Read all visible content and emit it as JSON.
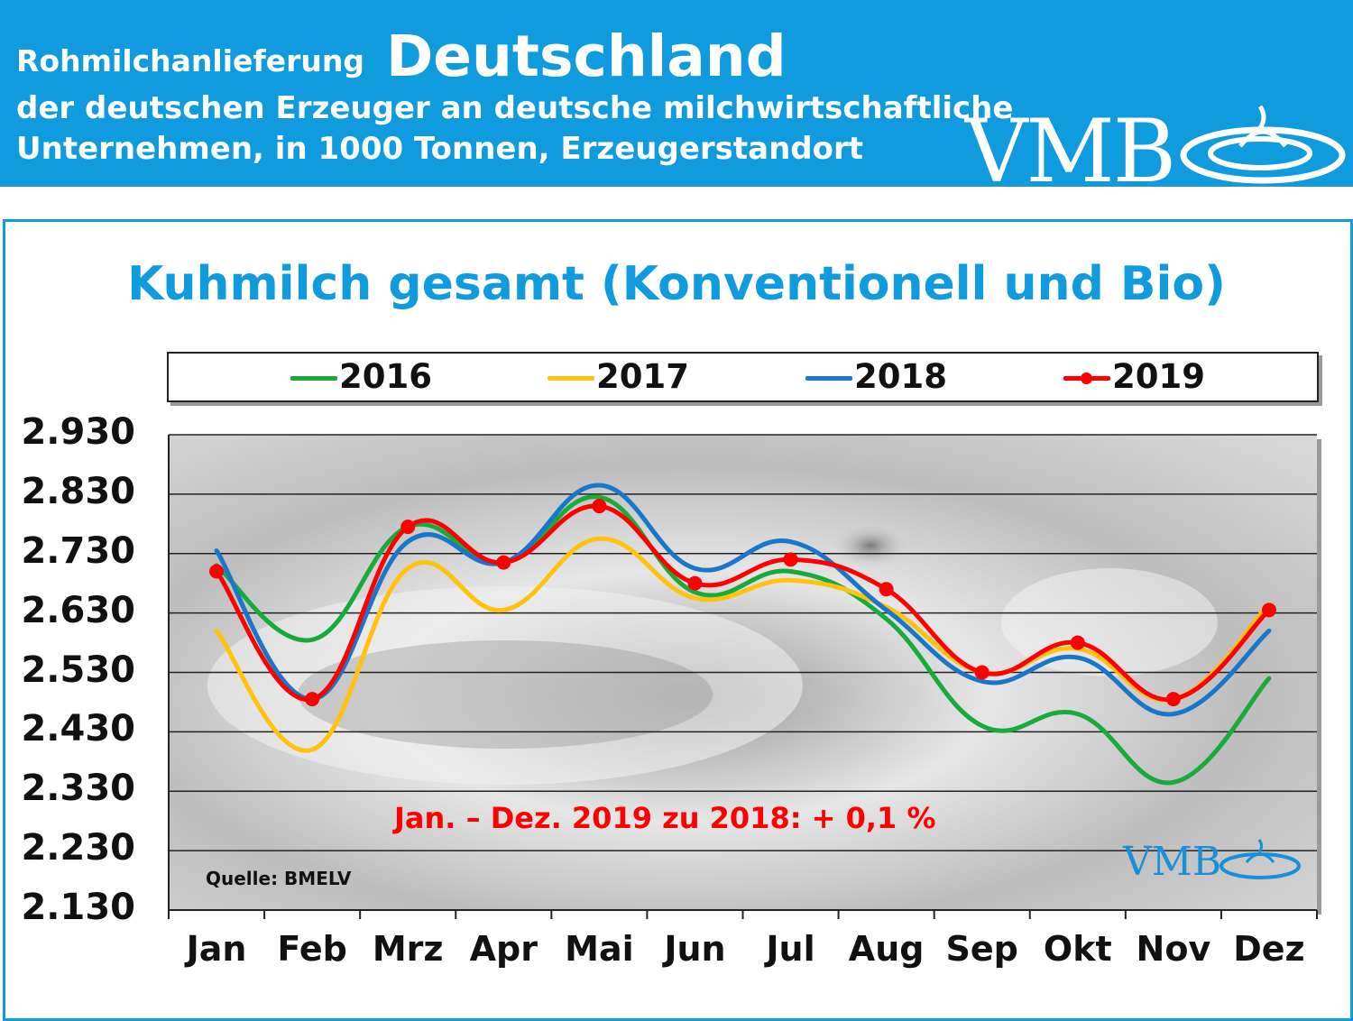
{
  "header": {
    "line1_small": "Rohmilchanlieferung",
    "line1_big": "Deutschland",
    "line2": "der deutschen Erzeuger an deutsche milchwirtschaftliche",
    "line3": "Unternehmen, in 1000 Tonnen, Erzeugerstandort",
    "logo": "VMB"
  },
  "colors": {
    "banner": "#0f9bdd",
    "title": "#0f9bdd",
    "2016": "#1aaa3c",
    "2017": "#ffc20e",
    "2018": "#1877c9",
    "2019": "#ff0000"
  },
  "chart_data": {
    "type": "line",
    "title": "Kuhmilch gesamt (Konventionell und Bio)",
    "categories": [
      "Jan",
      "Feb",
      "Mrz",
      "Apr",
      "Mai",
      "Jun",
      "Jul",
      "Aug",
      "Sep",
      "Okt",
      "Nov",
      "Dez"
    ],
    "yticks": [
      "2.930",
      "2.830",
      "2.730",
      "2.630",
      "2.530",
      "2.430",
      "2.330",
      "2.230",
      "2.130"
    ],
    "ylim": [
      2130,
      2930
    ],
    "grid": true,
    "legend_position": "top",
    "series": [
      {
        "name": "2016",
        "values": [
          2710,
          2585,
          2775,
          2715,
          2825,
          2665,
          2700,
          2620,
          2440,
          2460,
          2345,
          2520
        ]
      },
      {
        "name": "2017",
        "values": [
          2600,
          2400,
          2705,
          2635,
          2755,
          2655,
          2685,
          2640,
          2530,
          2570,
          2485,
          2645
        ]
      },
      {
        "name": "2018",
        "values": [
          2735,
          2485,
          2750,
          2715,
          2845,
          2705,
          2750,
          2635,
          2515,
          2555,
          2460,
          2600
        ]
      },
      {
        "name": "2019",
        "values": [
          2700,
          2485,
          2775,
          2715,
          2810,
          2680,
          2720,
          2670,
          2530,
          2580,
          2485,
          2635
        ],
        "markers": true
      }
    ],
    "annotation": "Jan. – Dez.  2019 zu 2018:  + 0,1 %",
    "source": "Quelle: BMELV",
    "watermark": "VMB"
  }
}
